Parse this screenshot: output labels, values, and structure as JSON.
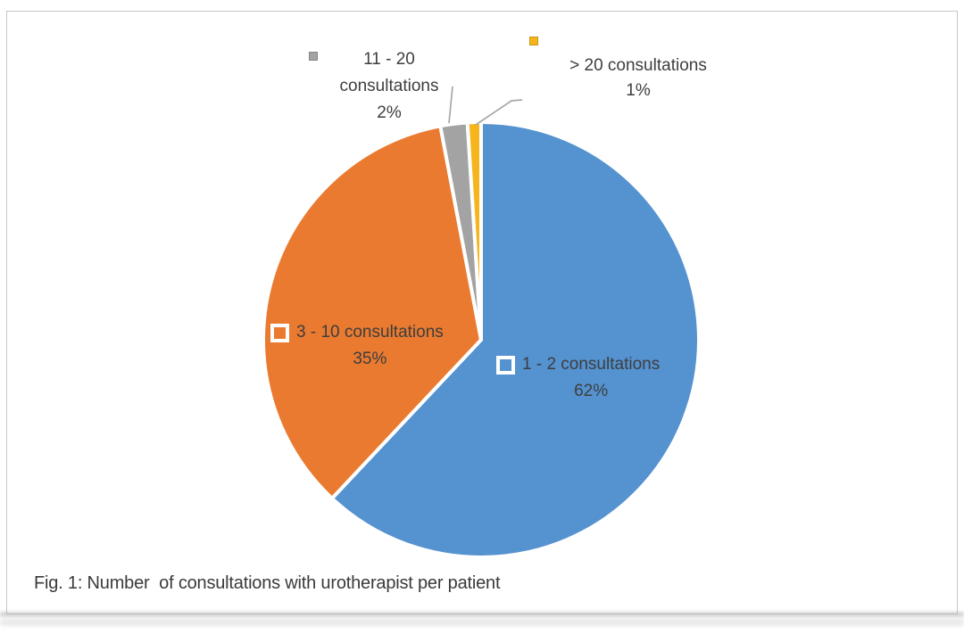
{
  "caption": "Fig. 1: Number  of consultations with urotherapist per patient",
  "chart_data": {
    "type": "pie",
    "title": "Fig. 1: Number of consultations with urotherapist per patient",
    "legend_position": "none",
    "data_labels": "category name + percentage",
    "start_angle_deg": 0,
    "direction": "clockwise",
    "slices": [
      {
        "label": "1 - 2 consultations",
        "value_pct": 62,
        "pct_label": "62%",
        "color": "#5492d0",
        "label_placement": "inside"
      },
      {
        "label": "3 - 10 consultations",
        "value_pct": 35,
        "pct_label": "35%",
        "color": "#ea7a30",
        "label_placement": "inside"
      },
      {
        "label": "11 - 20 consultations",
        "value_pct": 2,
        "pct_label": "2%",
        "color": "#a3a3a3",
        "label_placement": "outside-left"
      },
      {
        "label": "> 20 consultations",
        "value_pct": 1,
        "pct_label": "1%",
        "color": "#f6b51d",
        "label_placement": "outside-right"
      }
    ],
    "marker_style": "white-outlined squares inside slices, filled squares for outside labels",
    "leader_line_color": "#a8a8a8",
    "frame_color": "#c6c6c6"
  }
}
